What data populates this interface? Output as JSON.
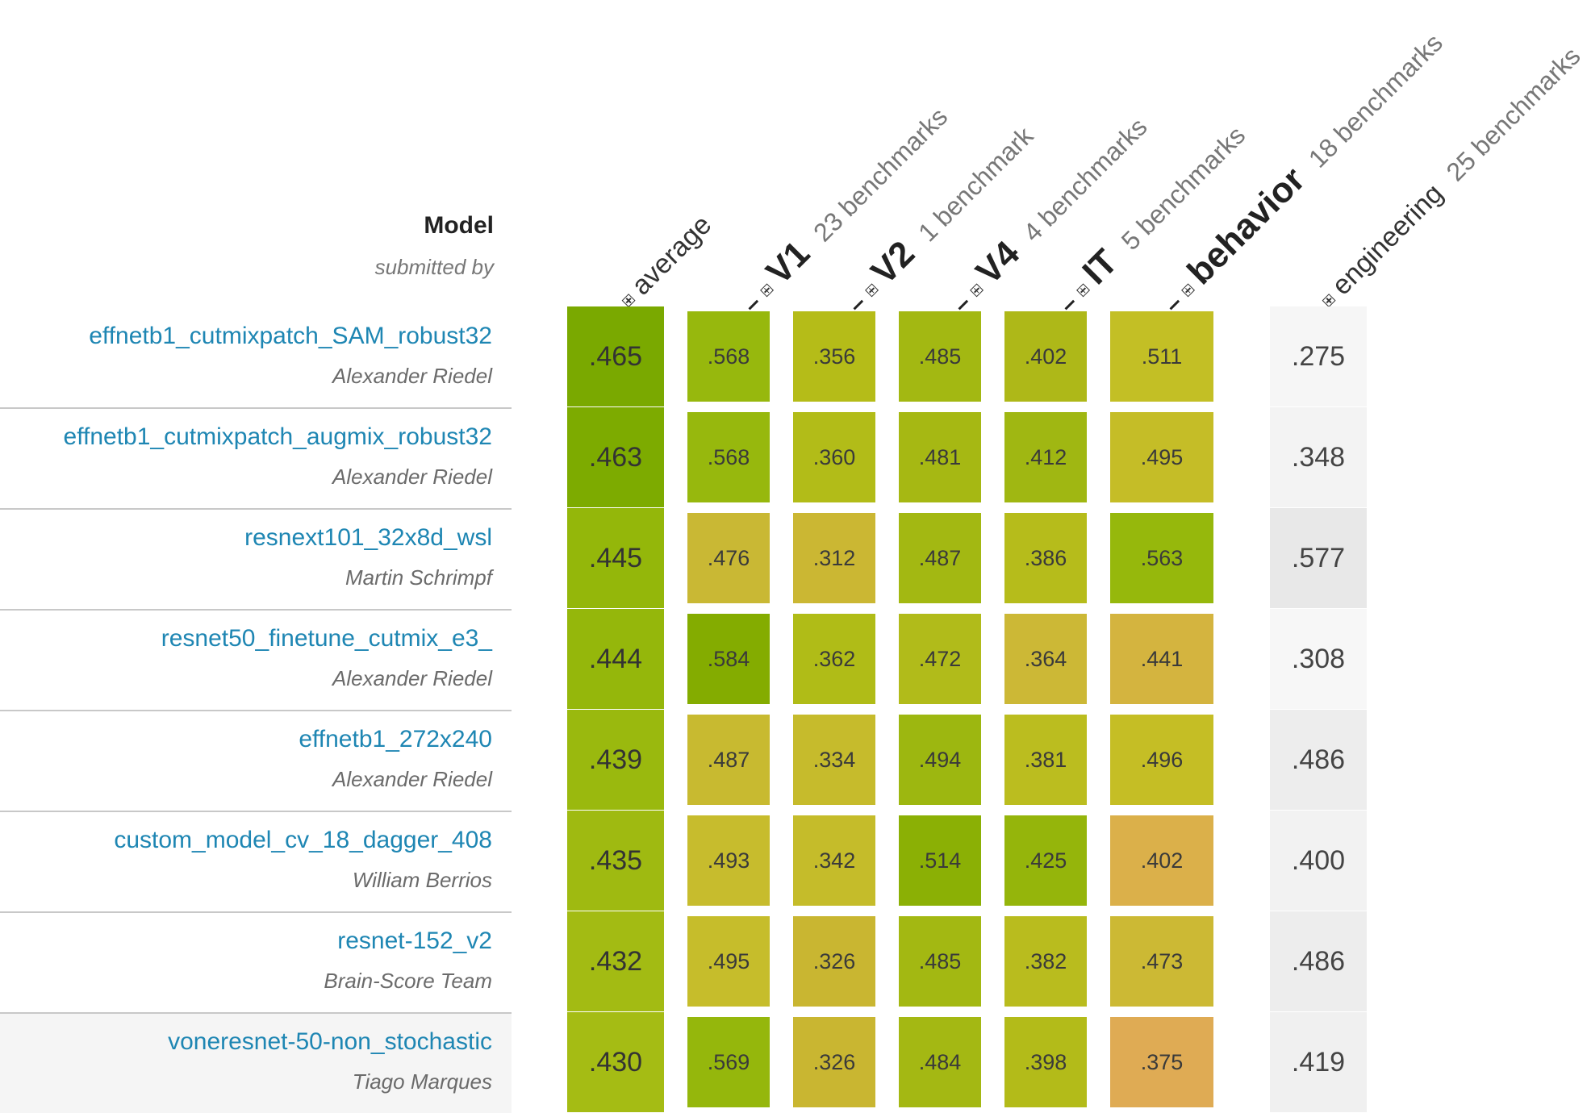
{
  "header": {
    "model_title": "Model",
    "submitted_by": "submitted by",
    "columns": [
      {
        "label": "average",
        "count": "",
        "minus": false
      },
      {
        "label": "V1",
        "count": "23 benchmarks",
        "minus": true
      },
      {
        "label": "V2",
        "count": "1 benchmark",
        "minus": true
      },
      {
        "label": "V4",
        "count": "4 benchmarks",
        "minus": true
      },
      {
        "label": "IT",
        "count": "5 benchmarks",
        "minus": true
      },
      {
        "label": "behavior",
        "count": "18 benchmarks",
        "minus": true
      },
      {
        "label": "engineering",
        "count": "25 benchmarks",
        "minus": false
      }
    ]
  },
  "colors": {
    "link": "#1e86b3",
    "engineering_bg": [
      "#f6f6f6",
      "#f3f3f3",
      "#e8e8e8",
      "#f7f7f7",
      "#ededed",
      "#f2f2f2",
      "#ededed",
      "#f0f0f0"
    ]
  },
  "rows": [
    {
      "model": "effnetb1_cutmixpatch_SAM_robust32",
      "submitter": "Alexander Riedel",
      "average": ".465",
      "scores": [
        ".568",
        ".356",
        ".485",
        ".402",
        ".511"
      ],
      "engineering": ".275",
      "highlight": false,
      "colors": {
        "average": "#7aa900",
        "cells": [
          "#97b80d",
          "#b5bc18",
          "#a3b812",
          "#aeb818",
          "#c3bf25"
        ]
      }
    },
    {
      "model": "effnetb1_cutmixpatch_augmix_robust32",
      "submitter": "Alexander Riedel",
      "average": ".463",
      "scores": [
        ".568",
        ".360",
        ".481",
        ".412",
        ".495"
      ],
      "engineering": ".348",
      "highlight": false,
      "colors": {
        "average": "#7dab00",
        "cells": [
          "#97b80d",
          "#b2bc18",
          "#a6b813",
          "#a0b712",
          "#c5bd27"
        ]
      }
    },
    {
      "model": "resnext101_32x8d_wsl",
      "submitter": "Martin Schrimpf",
      "average": ".445",
      "scores": [
        ".476",
        ".312",
        ".487",
        ".386",
        ".563"
      ],
      "engineering": ".577",
      "highlight": false,
      "colors": {
        "average": "#94b70a",
        "cells": [
          "#c9b834",
          "#cbb733",
          "#a3b812",
          "#b6bc1b",
          "#96b80c"
        ]
      }
    },
    {
      "model": "resnet50_finetune_cutmix_e3_",
      "submitter": "Alexander Riedel",
      "average": ".444",
      "scores": [
        ".584",
        ".362",
        ".472",
        ".364",
        ".441"
      ],
      "engineering": ".308",
      "highlight": false,
      "colors": {
        "average": "#95b70b",
        "cells": [
          "#84ac00",
          "#b0bc17",
          "#b1bb1a",
          "#ccb836",
          "#d4b43f"
        ]
      }
    },
    {
      "model": "effnetb1_272x240",
      "submitter": "Alexander Riedel",
      "average": ".439",
      "scores": [
        ".487",
        ".334",
        ".494",
        ".381",
        ".496"
      ],
      "engineering": ".486",
      "highlight": false,
      "colors": {
        "average": "#9ab90e",
        "cells": [
          "#c8ba30",
          "#c6bb2c",
          "#9db710",
          "#bbbd1f",
          "#c5be25"
        ]
      }
    },
    {
      "model": "custom_model_cv_18_dagger_408",
      "submitter": "William Berrios",
      "average": ".435",
      "scores": [
        ".493",
        ".342",
        ".514",
        ".425",
        ".402"
      ],
      "engineering": ".400",
      "highlight": false,
      "colors": {
        "average": "#9fba11",
        "cells": [
          "#c7bc2d",
          "#c5bc2a",
          "#8bb005",
          "#95b50b",
          "#dbb04a"
        ]
      }
    },
    {
      "model": "resnet-152_v2",
      "submitter": "Brain-Score Team",
      "average": ".432",
      "scores": [
        ".495",
        ".326",
        ".485",
        ".382",
        ".473"
      ],
      "engineering": ".486",
      "highlight": false,
      "colors": {
        "average": "#a3bb13",
        "cells": [
          "#c6bd2b",
          "#c9b631",
          "#a3b812",
          "#b9bc1e",
          "#ccb934"
        ]
      }
    },
    {
      "model": "voneresnet-50-non_stochastic",
      "submitter": "Tiago Marques",
      "average": ".430",
      "scores": [
        ".569",
        ".326",
        ".484",
        ".398",
        ".375"
      ],
      "engineering": ".419",
      "highlight": true,
      "colors": {
        "average": "#a5bc14",
        "cells": [
          "#95b70c",
          "#c9b631",
          "#a4b813",
          "#b3bb19",
          "#dfab54"
        ]
      }
    }
  ]
}
